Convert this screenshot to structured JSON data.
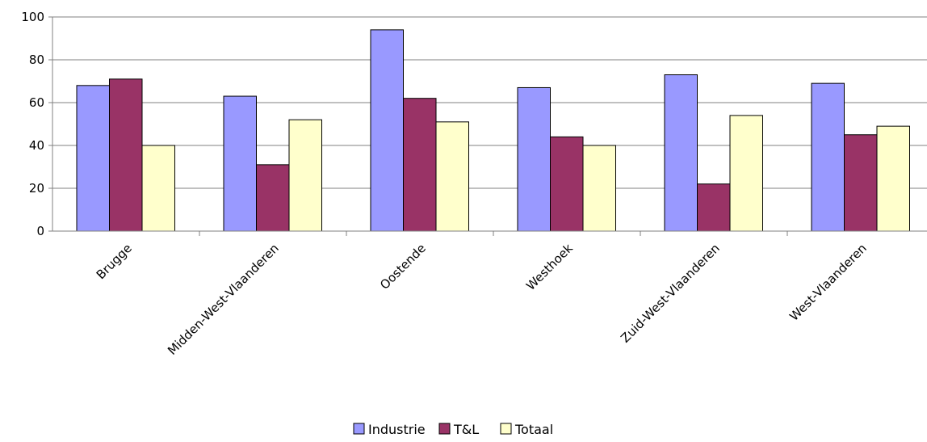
{
  "chart_data": {
    "type": "bar",
    "categories": [
      "Brugge",
      "Midden-West-Vlaanderen",
      "Oostende",
      "Westhoek",
      "Zuid-West-Vlaanderen",
      "West-Vlaanderen"
    ],
    "series": [
      {
        "name": "Industrie",
        "color": "#9999ff",
        "values": [
          68,
          63,
          94,
          67,
          73,
          69
        ]
      },
      {
        "name": "T&L",
        "color": "#993366",
        "values": [
          71,
          31,
          62,
          44,
          22,
          45
        ]
      },
      {
        "name": "Totaal",
        "color": "#ffffcc",
        "values": [
          40,
          52,
          51,
          40,
          54,
          49
        ]
      }
    ],
    "ylim": [
      0,
      100
    ],
    "yticks": [
      0,
      20,
      40,
      60,
      80,
      100
    ],
    "grid": true,
    "legend": "bottom-center"
  }
}
